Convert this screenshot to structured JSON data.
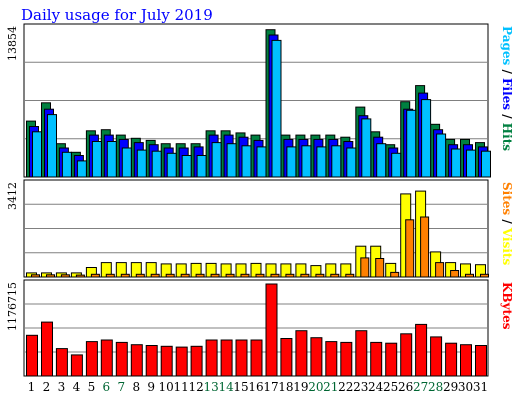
{
  "colors": {
    "hits": "#008040",
    "files": "#0000ff",
    "pages": "#00c0ff",
    "visits": "#ffff00",
    "sites": "#ff8000",
    "kbytes": "#ff0000",
    "title": "#0000ff",
    "weekend": "#006633",
    "weekday": "#000000"
  },
  "chart_data": {
    "type": "bar",
    "title": "Daily usage for July 2019",
    "x": [
      "1",
      "2",
      "3",
      "4",
      "5",
      "6",
      "7",
      "8",
      "9",
      "10",
      "11",
      "12",
      "13",
      "14",
      "15",
      "16",
      "17",
      "18",
      "19",
      "20",
      "21",
      "22",
      "23",
      "24",
      "25",
      "26",
      "27",
      "28",
      "29",
      "30",
      "31"
    ],
    "weekend_days": [
      "6",
      "7",
      "13",
      "14",
      "20",
      "21",
      "27",
      "28"
    ],
    "panels": [
      {
        "ymax_label": "13854",
        "ylim": [
          0,
          13854
        ],
        "grid": true,
        "legend": [
          "Hits",
          "Files",
          "Pages"
        ],
        "series": [
          {
            "name": "Hits",
            "color": "hits",
            "values": [
              5200,
              6900,
              3100,
              2300,
              4300,
              4400,
              3900,
              3600,
              3400,
              3100,
              3100,
              3100,
              4300,
              4300,
              4100,
              3900,
              13700,
              3900,
              3900,
              3900,
              3900,
              3700,
              6500,
              4200,
              3000,
              7000,
              8500,
              4900,
              3500,
              3500,
              3200
            ]
          },
          {
            "name": "Files",
            "color": "files",
            "values": [
              4700,
              6300,
              2700,
              2000,
              3900,
              3900,
              3500,
              3200,
              3000,
              2700,
              2700,
              2800,
              3900,
              3900,
              3700,
              3400,
              13200,
              3500,
              3500,
              3500,
              3500,
              3300,
              5700,
              3700,
              2700,
              6300,
              7800,
              4400,
              3000,
              3000,
              2800
            ]
          },
          {
            "name": "Pages",
            "color": "pages",
            "values": [
              4200,
              5800,
              2300,
              1500,
              3300,
              3300,
              2700,
              2500,
              2400,
              2200,
              2000,
              2000,
              3200,
              3100,
              2900,
              2800,
              12700,
              2800,
              2900,
              2800,
              2900,
              2700,
              5400,
              3100,
              2200,
              6200,
              7200,
              4000,
              2600,
              2500,
              2400
            ]
          }
        ]
      },
      {
        "ymax_label": "3412",
        "ylim": [
          0,
          3412
        ],
        "grid": true,
        "legend": [
          "Visits",
          "Sites"
        ],
        "series": [
          {
            "name": "Visits",
            "color": "visits",
            "values": [
              150,
              150,
              150,
              150,
              350,
              530,
              530,
              530,
              530,
              480,
              480,
              500,
              500,
              480,
              480,
              500,
              480,
              480,
              480,
              420,
              480,
              480,
              1130,
              1130,
              500,
              3050,
              3150,
              920,
              530,
              480,
              450
            ]
          },
          {
            "name": "Sites",
            "color": "sites",
            "values": [
              80,
              80,
              80,
              70,
              100,
              100,
              100,
              100,
              100,
              100,
              100,
              100,
              100,
              100,
              100,
              100,
              100,
              100,
              100,
              100,
              100,
              100,
              700,
              680,
              170,
              2100,
              2200,
              530,
              240,
              100,
              100
            ]
          }
        ]
      },
      {
        "ymax_label": "1176715",
        "ylim": [
          0,
          1176715
        ],
        "grid": true,
        "legend": [
          "KBytes"
        ],
        "series": [
          {
            "name": "KBytes",
            "color": "kbytes",
            "values": [
              520000,
              690000,
              350000,
              270000,
              440000,
              460000,
              430000,
              400000,
              390000,
              380000,
              370000,
              380000,
              460000,
              460000,
              460000,
              460000,
              1176715,
              480000,
              580000,
              490000,
              440000,
              430000,
              580000,
              430000,
              420000,
              540000,
              660000,
              500000,
              420000,
              400000,
              390000
            ]
          }
        ]
      }
    ]
  }
}
